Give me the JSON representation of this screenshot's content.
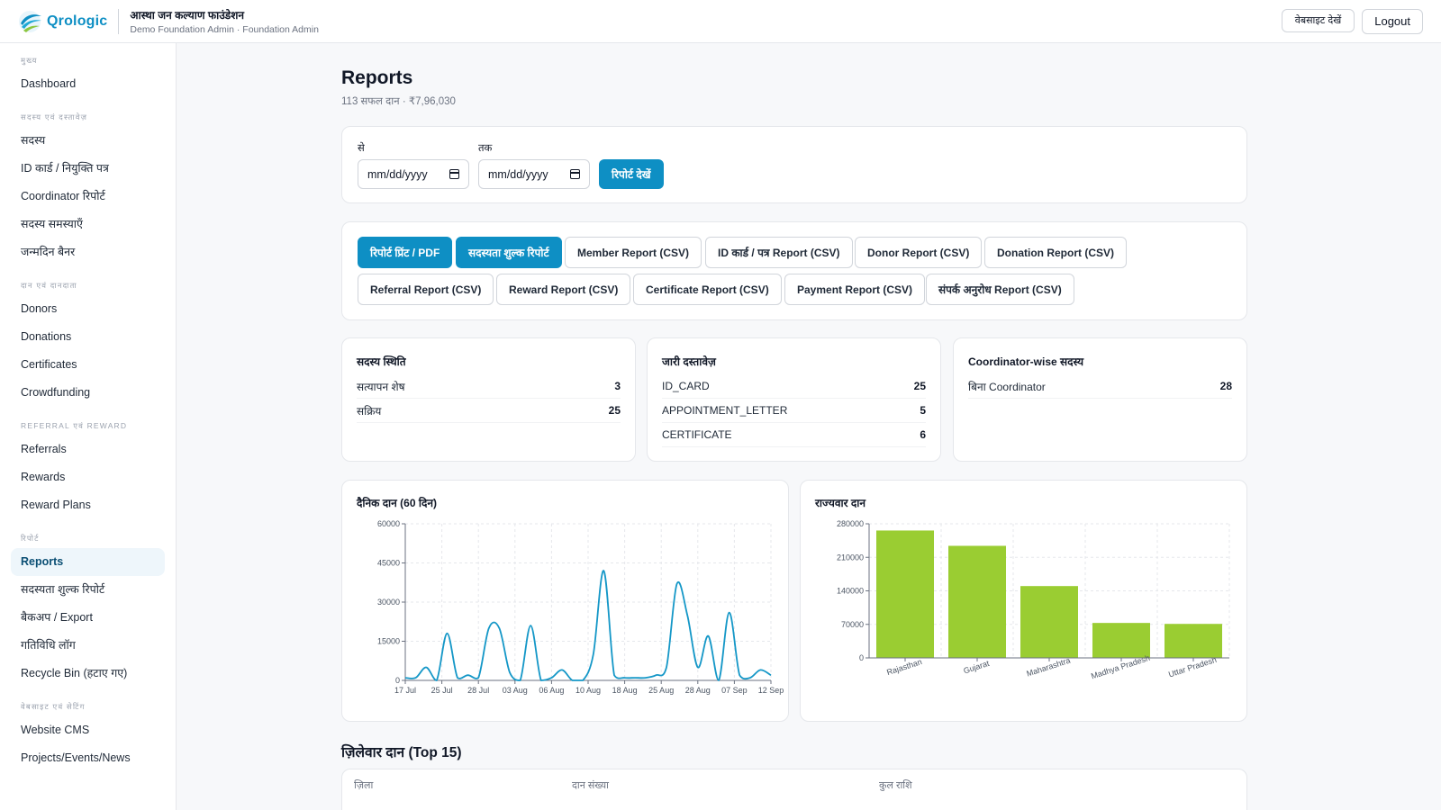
{
  "header": {
    "brand": "Qrologic",
    "org_name": "आस्था जन कल्याण फाउंडेशन",
    "org_sub": "Demo Foundation Admin · Foundation Admin",
    "view_site": "वेबसाइट देखें",
    "logout": "Logout"
  },
  "sidebar": {
    "sections": [
      {
        "title": "मुख्य",
        "items": [
          "Dashboard"
        ]
      },
      {
        "title": "सदस्य एवं दस्तावेज़",
        "items": [
          "सदस्य",
          "ID कार्ड / नियुक्ति पत्र",
          "Coordinator रिपोर्ट",
          "सदस्य समस्याएँ",
          "जन्मदिन बैनर"
        ]
      },
      {
        "title": "दान एवं दानदाता",
        "items": [
          "Donors",
          "Donations",
          "Certificates",
          "Crowdfunding"
        ]
      },
      {
        "title": "Referral एवं Reward",
        "items": [
          "Referrals",
          "Rewards",
          "Reward Plans"
        ]
      },
      {
        "title": "रिपोर्ट",
        "items": [
          "Reports",
          "सदस्यता शुल्क रिपोर्ट",
          "बैकअप / Export",
          "गतिविधि लॉग",
          "Recycle Bin (हटाए गए)"
        ]
      },
      {
        "title": "वेबसाइट एवं सेटिंग",
        "items": [
          "Website CMS",
          "Projects/Events/News"
        ]
      }
    ],
    "active": "Reports"
  },
  "page": {
    "title": "Reports",
    "subtitle": "113 सफल दान · ₹7,96,030"
  },
  "filters": {
    "from_label": "से",
    "to_label": "तक",
    "from_value": "mm/dd/yyyy",
    "to_value": "mm/dd/yyyy",
    "submit": "रिपोर्ट देखें"
  },
  "report_buttons": [
    "रिपोर्ट प्रिंट / PDF",
    "सदस्यता शुल्क रिपोर्ट",
    "Member Report (CSV)",
    "ID कार्ड / पत्र Report (CSV)",
    "Donor Report (CSV)",
    "Donation Report (CSV)",
    "Referral Report (CSV)",
    "Reward Report (CSV)",
    "Certificate Report (CSV)",
    "Payment Report (CSV)",
    "संपर्क अनुरोध Report (CSV)"
  ],
  "stats": {
    "member_status": {
      "title": "सदस्य स्थिति",
      "rows": [
        {
          "label": "सत्यापन शेष",
          "value": "3"
        },
        {
          "label": "सक्रिय",
          "value": "25"
        }
      ]
    },
    "issued_docs": {
      "title": "जारी दस्तावेज़",
      "rows": [
        {
          "label": "ID_CARD",
          "value": "25"
        },
        {
          "label": "APPOINTMENT_LETTER",
          "value": "5"
        },
        {
          "label": "CERTIFICATE",
          "value": "6"
        }
      ]
    },
    "coordinator_members": {
      "title": "Coordinator-wise सदस्य",
      "rows": [
        {
          "label": "बिना Coordinator",
          "value": "28"
        }
      ]
    }
  },
  "chart_data": [
    {
      "type": "line",
      "title": "दैनिक दान (60 दिन)",
      "x_ticks": [
        "17 Jul",
        "25 Jul",
        "28 Jul",
        "03 Aug",
        "06 Aug",
        "10 Aug",
        "18 Aug",
        "25 Aug",
        "28 Aug",
        "07 Sep",
        "12 Sep"
      ],
      "y_ticks": [
        0,
        15000,
        30000,
        45000,
        60000
      ],
      "ylim": [
        0,
        60000
      ],
      "grid": true,
      "series": [
        {
          "values": [
            1000,
            1000,
            5000,
            0,
            18000,
            1000,
            2000,
            1000,
            20000,
            20000,
            3000,
            0,
            21000,
            0,
            1000,
            4000,
            0,
            0,
            10000,
            42000,
            2000,
            1000,
            1000,
            1000,
            2000,
            5000,
            37000,
            25000,
            5000,
            17000,
            0,
            26000,
            2000,
            1000,
            4000,
            2000
          ],
          "color": "#1497c7"
        }
      ]
    },
    {
      "type": "bar",
      "title": "राज्यवार दान",
      "categories": [
        "Rajasthan",
        "Gujarat",
        "Maharashtra",
        "Madhya Pradesh",
        "Uttar Pradesh"
      ],
      "values": [
        266000,
        234000,
        150000,
        73000,
        71000
      ],
      "y_ticks": [
        0,
        70000,
        140000,
        210000,
        280000
      ],
      "ylim": [
        0,
        280000
      ],
      "grid": true,
      "color": "#9acd32"
    }
  ],
  "district_table": {
    "title": "ज़िलेवार दान (Top 15)",
    "columns": [
      "ज़िला",
      "दान संख्या",
      "कुल राशि"
    ]
  }
}
